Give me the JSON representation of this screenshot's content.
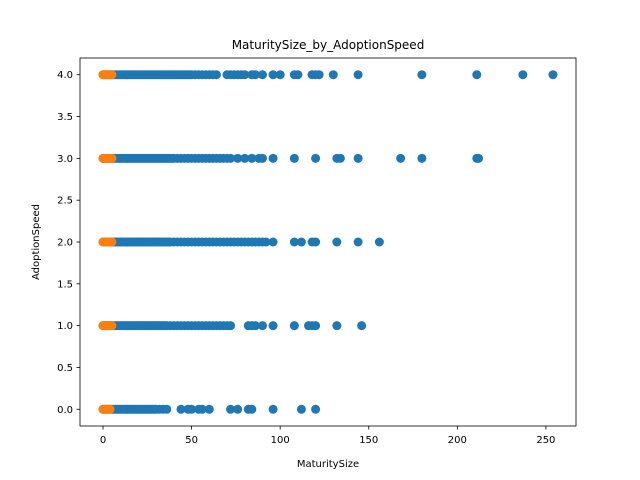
{
  "chart_data": {
    "type": "scatter",
    "title": "MaturitySize_by_AdoptionSpeed",
    "xlabel": "MaturitySize",
    "ylabel": "AdoptionSpeed",
    "xlim": [
      -13,
      267
    ],
    "ylim": [
      -0.2,
      4.2
    ],
    "x_ticks": [
      0,
      50,
      100,
      150,
      200,
      250
    ],
    "y_ticks": [
      0.0,
      0.5,
      1.0,
      1.5,
      2.0,
      2.5,
      3.0,
      3.5,
      4.0
    ],
    "y_tick_labels": [
      "0.0",
      "0.5",
      "1.0",
      "1.5",
      "2.0",
      "2.5",
      "3.0",
      "3.5",
      "4.0"
    ],
    "grid": false,
    "series": [
      {
        "color": "#1f77b4",
        "points": [
          {
            "y": 4,
            "x": [
              0,
              1,
              2,
              3,
              4,
              5,
              6,
              7,
              8,
              9,
              10,
              11,
              12,
              13,
              14,
              15,
              16,
              17,
              18,
              19,
              20,
              21,
              22,
              23,
              24,
              25,
              26,
              27,
              28,
              29,
              30,
              31,
              32,
              33,
              34,
              35,
              36,
              37,
              38,
              39,
              40,
              41,
              42,
              43,
              44,
              45,
              46,
              47,
              48,
              49,
              50,
              52,
              54,
              56,
              58,
              60,
              62,
              64,
              70,
              72,
              74,
              76,
              78,
              80,
              84,
              86,
              90,
              96,
              100,
              108,
              110,
              118,
              120,
              122,
              130,
              144,
              180,
              211,
              237,
              254
            ]
          },
          {
            "y": 3,
            "x": [
              0,
              1,
              2,
              3,
              4,
              5,
              6,
              7,
              8,
              9,
              10,
              11,
              12,
              13,
              14,
              15,
              16,
              17,
              18,
              19,
              20,
              21,
              22,
              23,
              24,
              25,
              26,
              27,
              28,
              29,
              30,
              31,
              32,
              33,
              34,
              35,
              36,
              37,
              38,
              39,
              40,
              42,
              44,
              46,
              48,
              50,
              52,
              54,
              56,
              58,
              60,
              62,
              64,
              66,
              68,
              70,
              72,
              76,
              80,
              84,
              88,
              90,
              96,
              108,
              120,
              132,
              134,
              144,
              168,
              180,
              211,
              212
            ]
          },
          {
            "y": 2,
            "x": [
              0,
              1,
              2,
              3,
              4,
              5,
              6,
              7,
              8,
              9,
              10,
              11,
              12,
              13,
              14,
              15,
              16,
              17,
              18,
              19,
              20,
              21,
              22,
              23,
              24,
              25,
              26,
              27,
              28,
              29,
              30,
              31,
              32,
              33,
              34,
              35,
              36,
              37,
              38,
              40,
              42,
              44,
              46,
              48,
              50,
              52,
              54,
              56,
              58,
              60,
              62,
              64,
              66,
              68,
              70,
              72,
              74,
              76,
              78,
              80,
              82,
              84,
              86,
              88,
              90,
              92,
              96,
              108,
              112,
              118,
              120,
              132,
              144,
              156
            ]
          },
          {
            "y": 1,
            "x": [
              0,
              1,
              2,
              3,
              4,
              5,
              6,
              7,
              8,
              9,
              10,
              11,
              12,
              13,
              14,
              15,
              16,
              17,
              18,
              19,
              20,
              21,
              22,
              23,
              24,
              25,
              26,
              27,
              28,
              29,
              30,
              31,
              32,
              33,
              34,
              35,
              36,
              38,
              40,
              42,
              44,
              46,
              48,
              50,
              52,
              54,
              56,
              58,
              60,
              62,
              64,
              66,
              68,
              70,
              72,
              82,
              84,
              86,
              90,
              96,
              108,
              116,
              118,
              120,
              132,
              146
            ]
          },
          {
            "y": 0,
            "x": [
              0,
              1,
              2,
              3,
              4,
              5,
              6,
              7,
              8,
              9,
              10,
              11,
              12,
              13,
              14,
              15,
              16,
              17,
              18,
              19,
              20,
              21,
              22,
              23,
              24,
              25,
              26,
              27,
              28,
              29,
              30,
              32,
              34,
              36,
              44,
              48,
              50,
              54,
              56,
              60,
              72,
              76,
              82,
              84,
              96,
              112,
              120
            ]
          }
        ]
      },
      {
        "color": "#ff7f0e",
        "points": [
          {
            "y": 4,
            "x": [
              0,
              1,
              2,
              3,
              4,
              5
            ]
          },
          {
            "y": 3,
            "x": [
              0,
              1,
              2,
              3,
              4,
              5
            ]
          },
          {
            "y": 2,
            "x": [
              0,
              1,
              2,
              3,
              4,
              5
            ]
          },
          {
            "y": 1,
            "x": [
              0,
              1,
              2,
              3,
              4,
              5
            ]
          },
          {
            "y": 0,
            "x": [
              0,
              1,
              2,
              3,
              4
            ]
          }
        ]
      }
    ]
  }
}
